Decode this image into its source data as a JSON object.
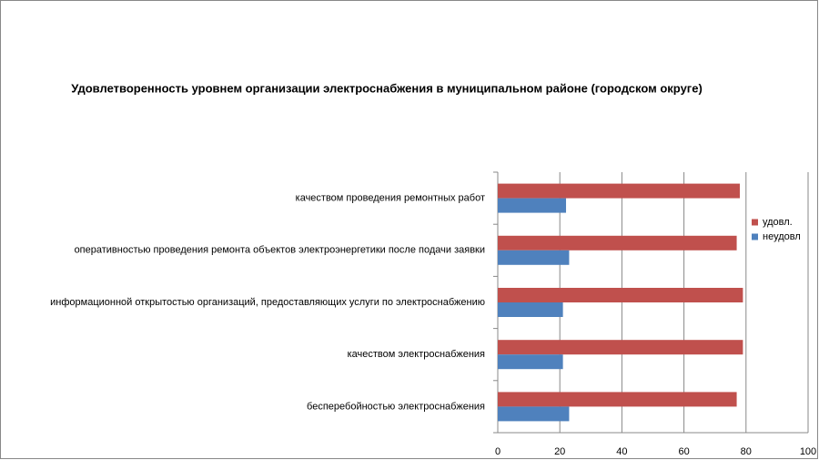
{
  "chart_data": {
    "type": "hbar",
    "title": "Удовлетворенность уровнем организации электроснабжения в муниципальном районе (городском округе)",
    "categories": [
      "качеством проведения ремонтных работ",
      "оперативностью проведения ремонта объектов электроэнергетики после подачи заявки",
      "информационной открытостью организаций, предоставляющих услуги по электроснабжению",
      "качеством электроснабжения",
      "бесперебойностью электроснабжения"
    ],
    "series": [
      {
        "name": "удовл.",
        "color": "#c0504d",
        "values": [
          78,
          77,
          79,
          79,
          77
        ]
      },
      {
        "name": "неудовл",
        "color": "#4f81bd",
        "values": [
          22,
          23,
          21,
          21,
          23
        ]
      }
    ],
    "xlim": [
      0,
      100
    ],
    "xticks": [
      0,
      20,
      40,
      60,
      80,
      100
    ],
    "grid": true,
    "legend": "right"
  }
}
